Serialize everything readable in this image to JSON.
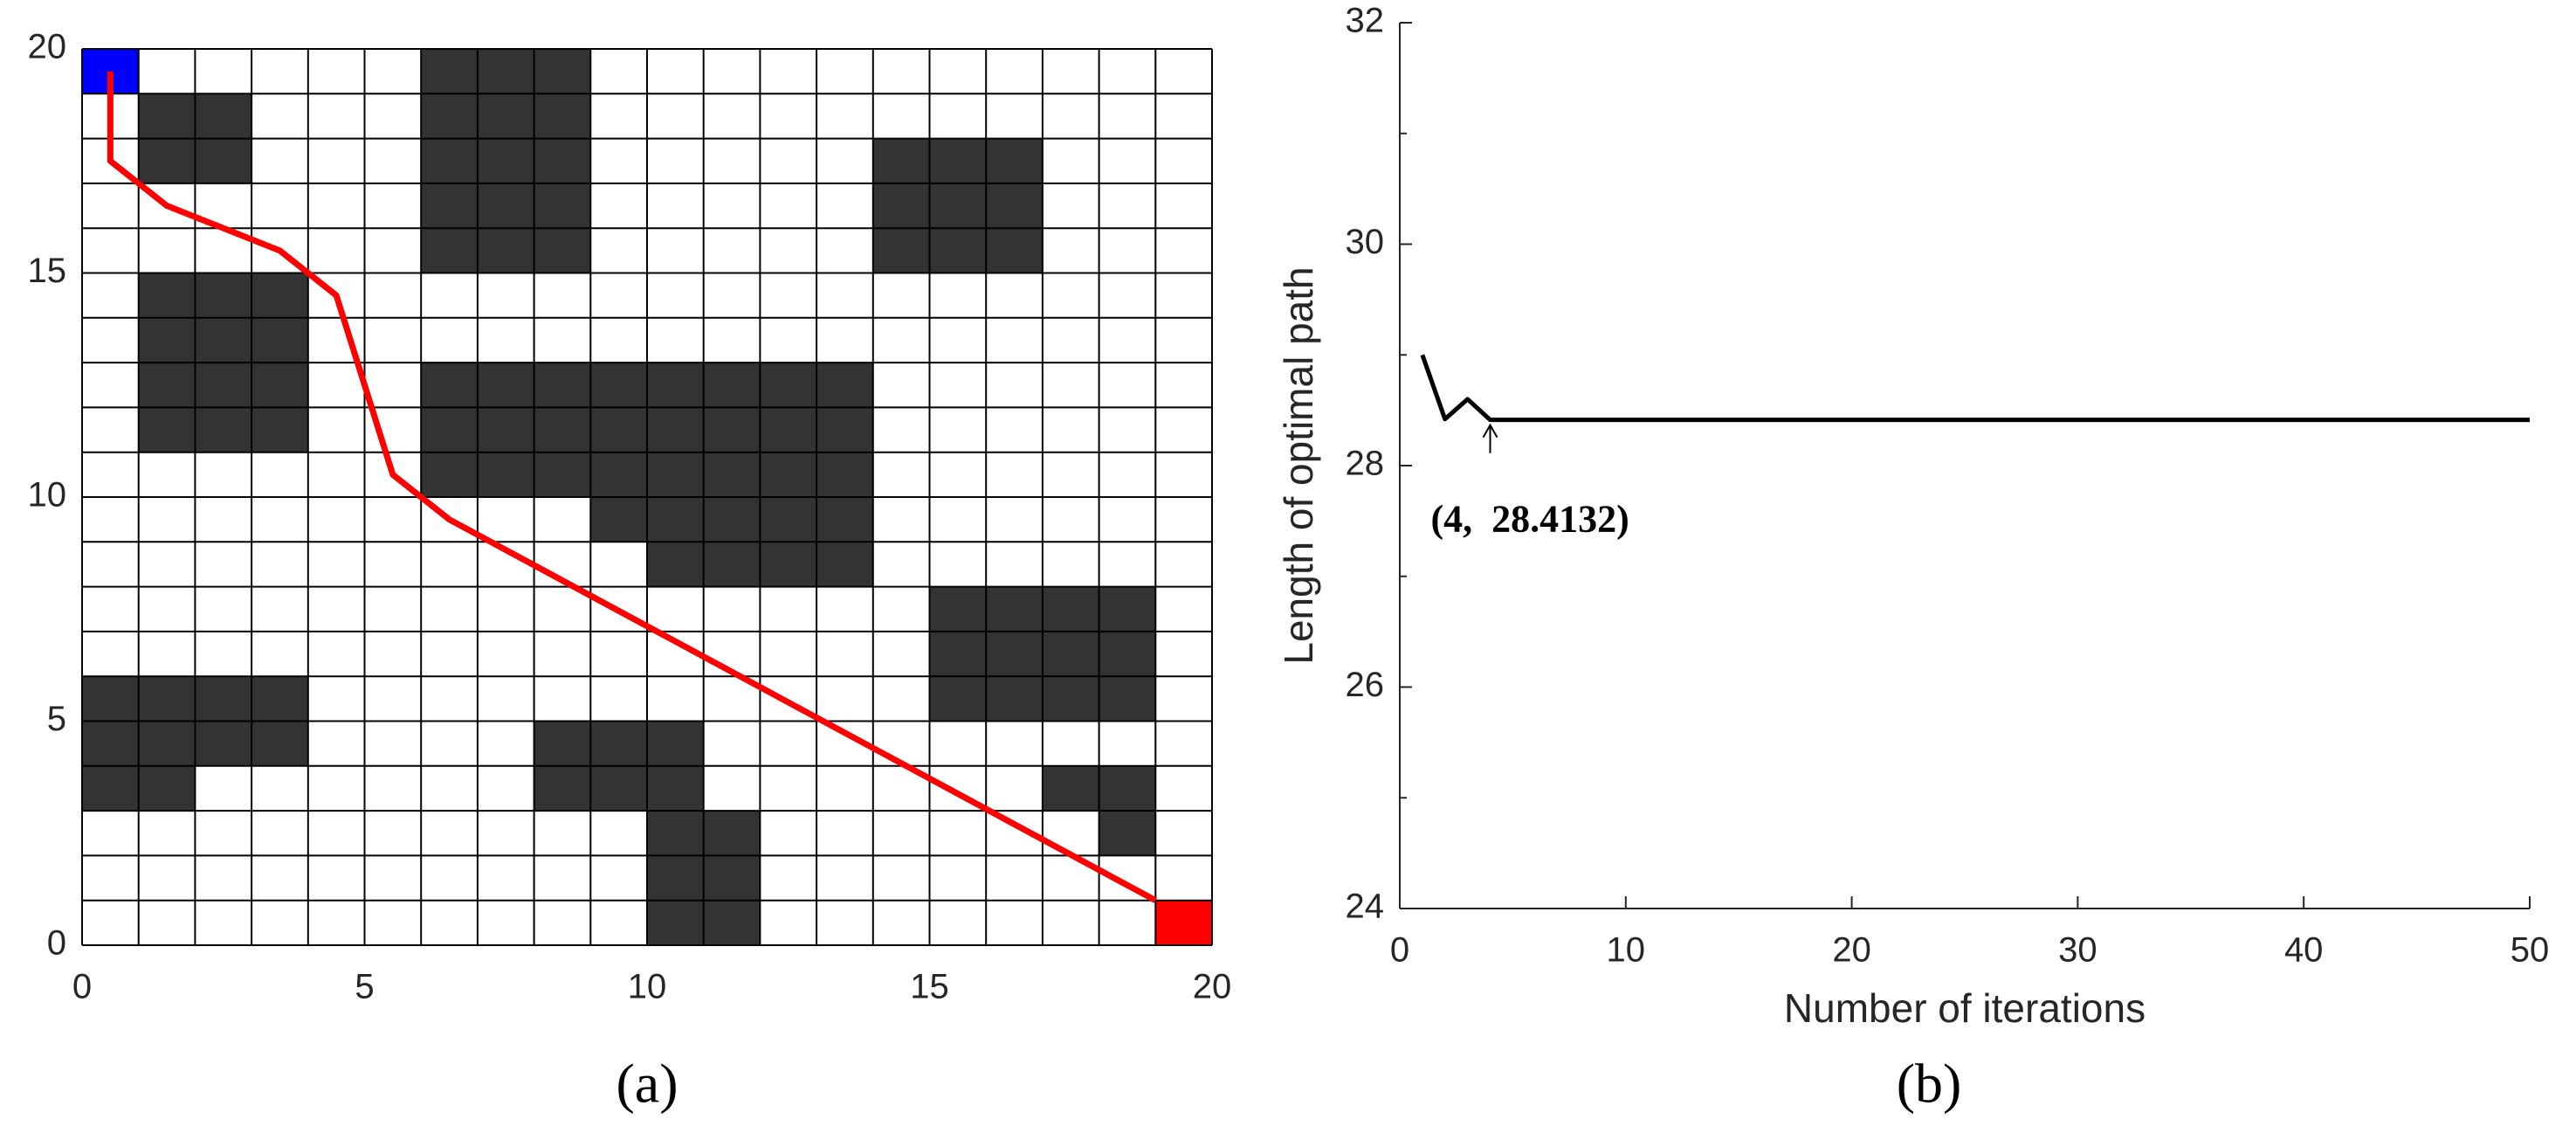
{
  "chart_data": [
    {
      "type": "grid",
      "caption": "(a)",
      "xlim": [
        0,
        20
      ],
      "ylim": [
        0,
        20
      ],
      "xticks": [
        0,
        5,
        10,
        15,
        20
      ],
      "yticks": [
        0,
        5,
        10,
        15,
        20
      ],
      "obstacle_color": "#333333",
      "obstacles": [
        [
          1,
          17,
          3,
          19
        ],
        [
          6,
          15,
          9,
          20
        ],
        [
          14,
          15,
          17,
          18
        ],
        [
          1,
          11,
          4,
          15
        ],
        [
          6,
          10,
          14,
          13
        ],
        [
          9,
          9,
          14,
          10
        ],
        [
          10,
          8,
          14,
          9
        ],
        [
          15,
          5,
          19,
          8
        ],
        [
          0,
          4,
          4,
          6
        ],
        [
          0,
          3,
          2,
          4
        ],
        [
          8,
          3,
          11,
          5
        ],
        [
          10,
          0,
          12,
          3
        ],
        [
          17,
          3,
          19,
          4
        ],
        [
          18,
          2,
          19,
          3
        ]
      ],
      "start": [
        0,
        19,
        1,
        20
      ],
      "start_color": "#0000ff",
      "goal": [
        19,
        0,
        20,
        1
      ],
      "goal_color": "#ff0000",
      "path": {
        "color": "#ff0000",
        "x": [
          0.5,
          0.5,
          1.5,
          3.5,
          4.5,
          5.5,
          6.5,
          19
        ],
        "y": [
          19.5,
          17.5,
          16.5,
          15.5,
          14.5,
          10.5,
          9.5,
          1
        ]
      }
    },
    {
      "type": "line",
      "caption": "(b)",
      "xlabel": "Number of iterations",
      "ylabel": "Length of optimal path",
      "annotation": "(4,  28.4132)",
      "xlim": [
        0,
        50
      ],
      "ylim": [
        24,
        32
      ],
      "xticks": [
        0,
        10,
        20,
        30,
        40,
        50
      ],
      "yticks": [
        24,
        26,
        28,
        30,
        32
      ],
      "yminor": [
        25,
        27,
        29,
        31
      ],
      "color": "#000000",
      "x": [
        1,
        2,
        3,
        4,
        5,
        6,
        7,
        8,
        9,
        10,
        11,
        12,
        13,
        14,
        15,
        16,
        17,
        18,
        19,
        20,
        21,
        22,
        23,
        24,
        25,
        26,
        27,
        28,
        29,
        30,
        31,
        32,
        33,
        34,
        35,
        36,
        37,
        38,
        39,
        40,
        41,
        42,
        43,
        44,
        45,
        46,
        47,
        48,
        49,
        50
      ],
      "values": [
        29.0,
        28.42,
        28.6,
        28.4132,
        28.4132,
        28.4132,
        28.4132,
        28.4132,
        28.4132,
        28.4132,
        28.4132,
        28.4132,
        28.4132,
        28.4132,
        28.4132,
        28.4132,
        28.4132,
        28.4132,
        28.4132,
        28.4132,
        28.4132,
        28.4132,
        28.4132,
        28.4132,
        28.4132,
        28.4132,
        28.4132,
        28.4132,
        28.4132,
        28.4132,
        28.4132,
        28.4132,
        28.4132,
        28.4132,
        28.4132,
        28.4132,
        28.4132,
        28.4132,
        28.4132,
        28.4132,
        28.4132,
        28.4132,
        28.4132,
        28.4132,
        28.4132,
        28.4132,
        28.4132,
        28.4132,
        28.4132,
        28.4132
      ]
    }
  ]
}
